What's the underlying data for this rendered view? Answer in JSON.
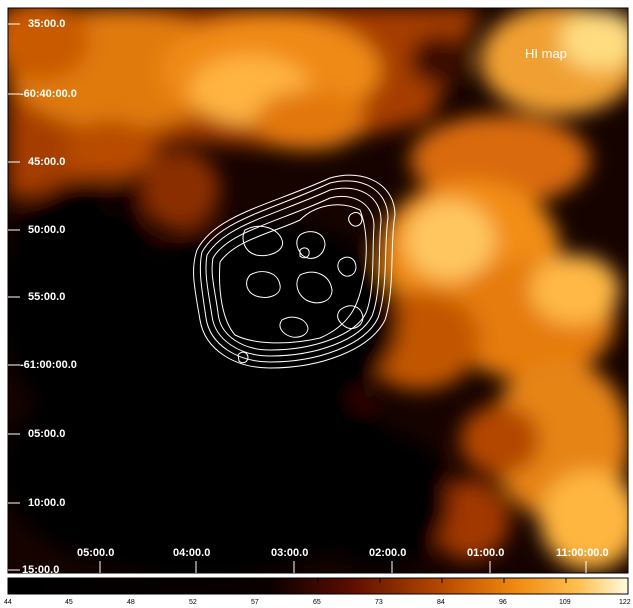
{
  "map": {
    "title": "HI map",
    "dec_labels": [
      "35:00.0",
      "-60:40:00.0",
      "45:00.0",
      "50:00.0",
      "55:00.0",
      "-61:00:00.0",
      "05:00.0",
      "10:00.0",
      "15:00.0"
    ],
    "ra_labels": [
      "05:00.0",
      "04:00.0",
      "03:00.0",
      "02:00.0",
      "01:00.0",
      "11:00:00.0"
    ]
  },
  "colorbar": {
    "labels": [
      "44",
      "45",
      "48",
      "52",
      "57",
      "65",
      "73",
      "84",
      "96",
      "109",
      "122"
    ]
  },
  "colors": {
    "dark": "#050100",
    "mid": "#b24400",
    "bright": "#ff9a1a",
    "peak": "#ffe28a",
    "contour": "#ffffff"
  }
}
